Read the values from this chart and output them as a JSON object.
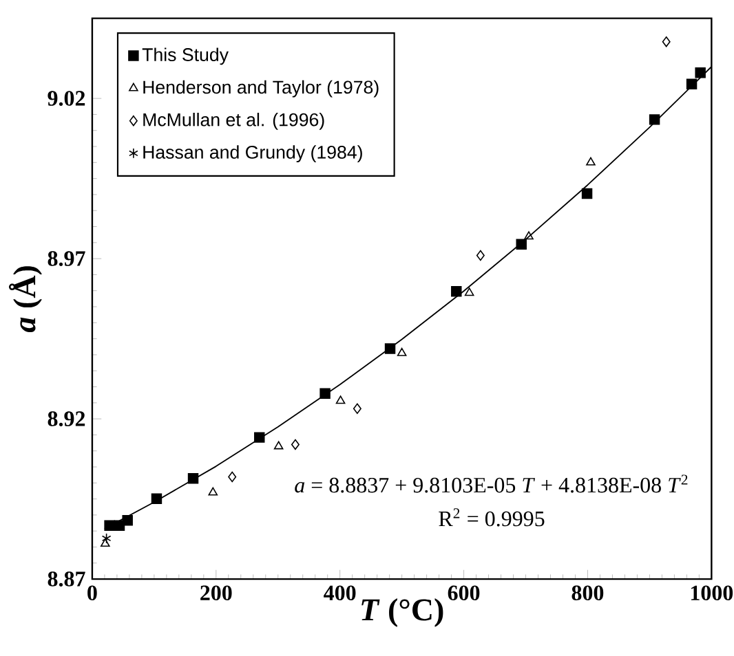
{
  "chart_data": {
    "type": "scatter",
    "xlabel": "*T* (°C)",
    "ylabel": "*a* (Å)",
    "xlim": [
      0,
      1000
    ],
    "ylim": [
      8.87,
      9.045
    ],
    "xticks": [
      0,
      200,
      400,
      600,
      800,
      1000
    ],
    "yticks": [
      8.87,
      8.92,
      8.97,
      9.02
    ],
    "legend": "top left",
    "annotations": [
      "*a* = 8.8837 + 9.8103E-05 *T* + 4.8138E-08 *T*$^{2}$",
      "R$^{2}$ = 0.9995"
    ],
    "series": [
      {
        "name": "This Study",
        "color": "#000000",
        "marker": "square",
        "x": [
          28,
          44,
          57,
          104,
          163,
          270,
          376,
          481,
          588,
          693,
          799,
          908,
          968,
          982
        ],
        "values": [
          8.8867,
          8.8867,
          8.8883,
          8.8951,
          8.9014,
          8.9142,
          8.9279,
          8.9419,
          8.9598,
          8.9745,
          8.9903,
          9.0134,
          9.0245,
          9.028
        ]
      },
      {
        "name": "Henderson and Taylor (1978)",
        "color": "#000000",
        "marker": "triangle",
        "x": [
          21,
          195,
          301,
          401,
          500,
          609,
          705,
          805
        ],
        "values": [
          8.881,
          8.897,
          8.9114,
          8.9256,
          8.9405,
          8.9593,
          8.9769,
          9.0
        ]
      },
      {
        "name": "McMullan et al. (1996)",
        "color": "#000000",
        "marker": "diamond",
        "x": [
          226,
          328,
          428,
          627,
          927
        ],
        "values": [
          8.9019,
          8.912,
          8.9232,
          8.971,
          9.0377
        ]
      },
      {
        "name": "Hassan and Grundy (1984)",
        "color": "#000000",
        "marker": "cross",
        "x": [
          23
        ],
        "values": [
          8.8827
        ]
      },
      {
        "type": "line",
        "color": "#000000",
        "marker": "none",
        "x": [
          20,
          100,
          200,
          300,
          400,
          500,
          600,
          700,
          800,
          900,
          1000
        ],
        "values": [
          8.8857,
          8.894,
          8.9052,
          8.9175,
          8.9307,
          8.9448,
          8.9599,
          8.976,
          8.993,
          9.011,
          9.0299
        ]
      }
    ]
  }
}
